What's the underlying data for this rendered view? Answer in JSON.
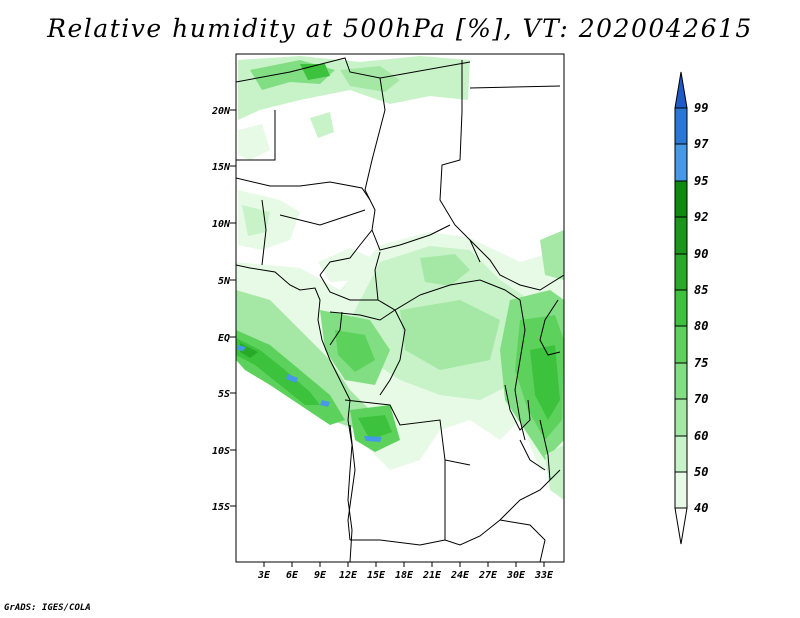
{
  "title": "Relative humidity at 500hPa [%], VT: 2020042615",
  "credit": "GrADS: IGES/COLA",
  "lat_labels": [
    "20N",
    "15N",
    "10N",
    "5N",
    "EQ",
    "5S",
    "10S",
    "15S"
  ],
  "lon_labels": [
    "3E",
    "6E",
    "9E",
    "12E",
    "15E",
    "18E",
    "21E",
    "24E",
    "27E",
    "30E",
    "33E"
  ],
  "colorbar": {
    "labels": [
      "99",
      "97",
      "95",
      "92",
      "90",
      "85",
      "80",
      "75",
      "70",
      "60",
      "50",
      "40"
    ],
    "colors": {
      "below_40": "#ffffff",
      "40_50": "#e6fae6",
      "50_60": "#c8f2c8",
      "60_70": "#a5e8a5",
      "70_75": "#82de82",
      "75_80": "#5cd25c",
      "80_85": "#3cc23c",
      "85_90": "#28aa28",
      "90_92": "#1a961a",
      "92_95": "#0e8a0e",
      "95_97": "#4699e6",
      "97_99": "#2a78d6",
      "above_99": "#1e5ac8"
    }
  },
  "colors": {
    "border": "#000000",
    "background": "#ffffff"
  }
}
